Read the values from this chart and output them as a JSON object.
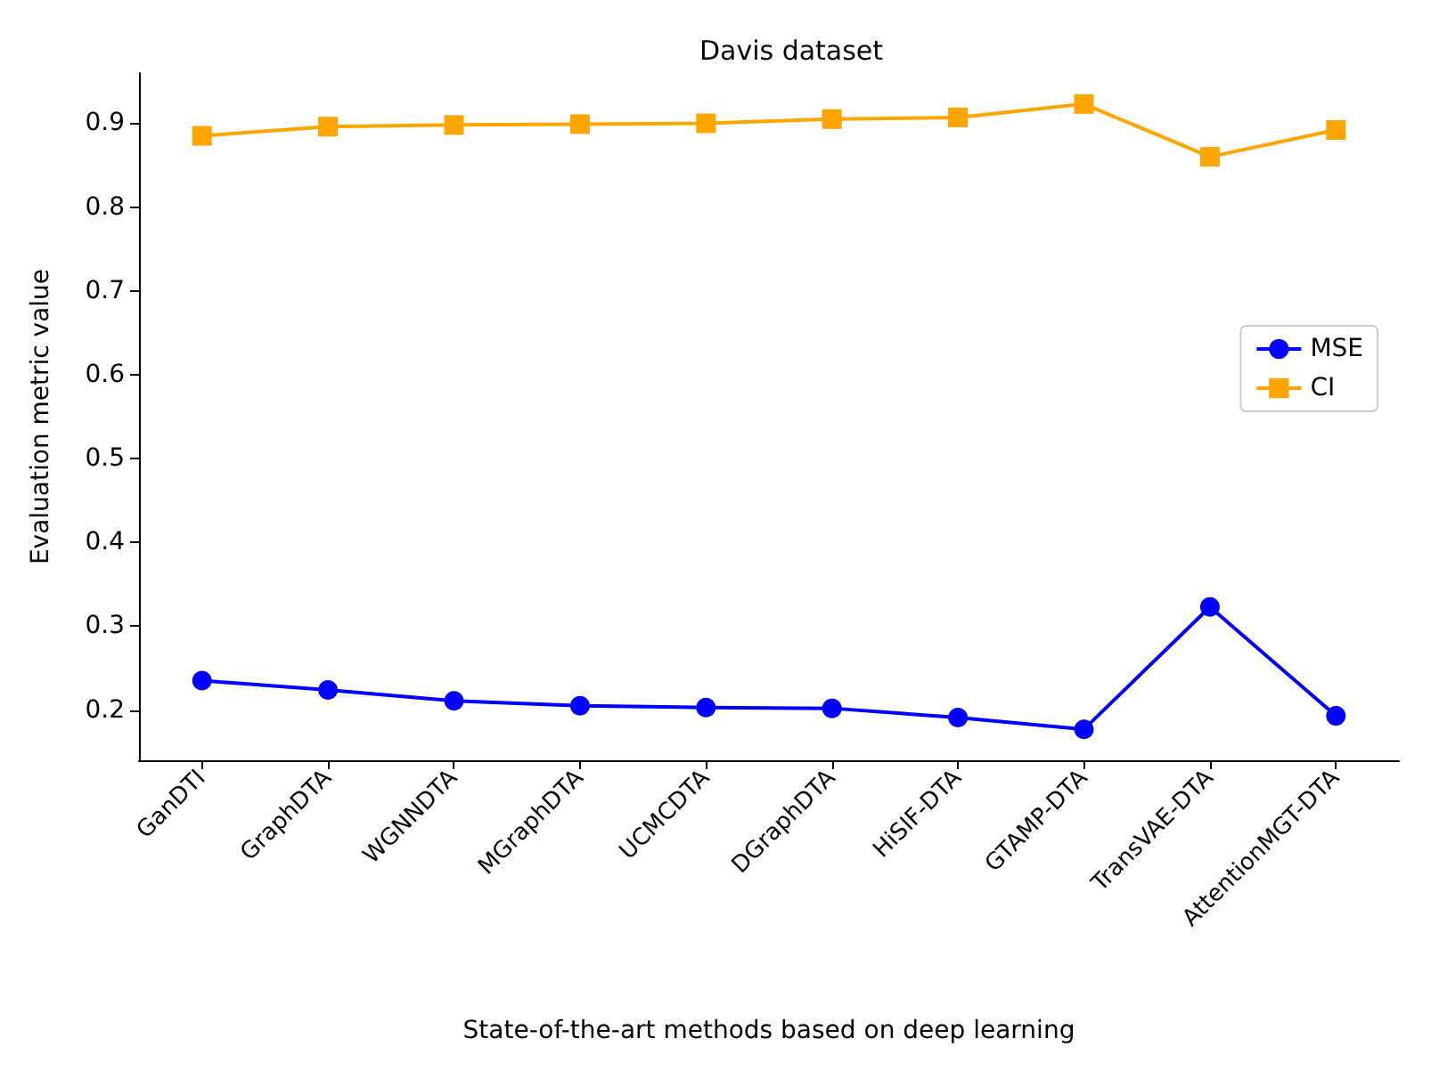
{
  "chart_data": {
    "type": "line",
    "title": "Davis dataset",
    "xlabel": "State-of-the-art methods based on deep learning",
    "ylabel": "Evaluation metric value",
    "categories": [
      "GanDTI",
      "GraphDTA",
      "WGNNDTA",
      "MGraphDTA",
      "UCMCDTA",
      "DGraphDTA",
      "HiSIF-DTA",
      "GTAMP-DTA",
      "TransVAE-DTA",
      "AttentionMGT-DTA"
    ],
    "series": [
      {
        "name": "MSE",
        "color": "#0000ff",
        "marker": "circle",
        "values": [
          0.235,
          0.224,
          0.211,
          0.205,
          0.203,
          0.202,
          0.191,
          0.177,
          0.323,
          0.193
        ]
      },
      {
        "name": "CI",
        "color": "#ffa500",
        "marker": "square",
        "values": [
          0.885,
          0.896,
          0.898,
          0.899,
          0.9,
          0.905,
          0.907,
          0.923,
          0.86,
          0.892
        ]
      }
    ],
    "ylim": [
      0.14,
      0.96
    ],
    "yticks": [
      0.2,
      0.3,
      0.4,
      0.5,
      0.6,
      0.7,
      0.8,
      0.9
    ],
    "grid": false,
    "legend": "right"
  }
}
